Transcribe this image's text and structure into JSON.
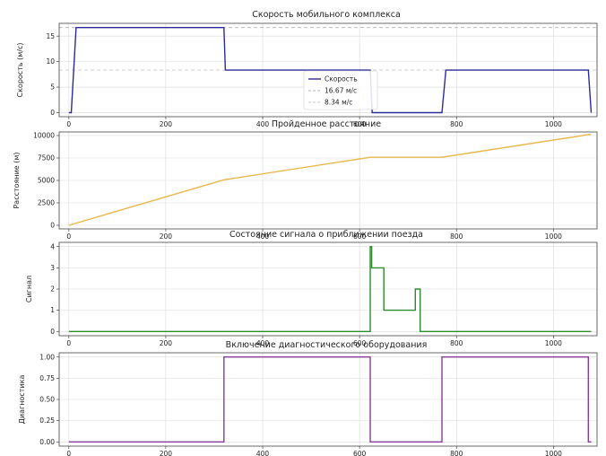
{
  "chart_data": [
    {
      "type": "line",
      "title": "Скорость мобильного комплекса",
      "xlabel": "",
      "ylabel": "Скорость (м/с)",
      "xlim": [
        -20,
        1090
      ],
      "ylim": [
        -0.8,
        17.5
      ],
      "xticks": [
        0,
        200,
        400,
        600,
        800,
        1000
      ],
      "yticks": [
        0,
        5,
        10,
        15
      ],
      "grid": true,
      "legend_position": "center",
      "series": [
        {
          "name": "Скорость",
          "color": "#2b2b9a",
          "x": [
            0,
            5,
            15,
            320,
            323,
            622,
            626,
            770,
            778,
            1072,
            1078
          ],
          "y": [
            0,
            0,
            16.67,
            16.67,
            8.34,
            8.34,
            0,
            0,
            8.34,
            8.34,
            0
          ]
        }
      ],
      "reference_lines": [
        {
          "name": "16.67 м/с",
          "y": 16.67,
          "color": "#b0b0b0",
          "style": "dashed"
        },
        {
          "name": "8.34 м/с",
          "y": 8.34,
          "color": "#c9c9c9",
          "style": "dashed"
        }
      ]
    },
    {
      "type": "line",
      "title": "Пройденное расстояние",
      "xlabel": "",
      "ylabel": "Расстояние (м)",
      "xlim": [
        -20,
        1090
      ],
      "ylim": [
        -400,
        10400
      ],
      "xticks": [
        0,
        200,
        400,
        600,
        800,
        1000
      ],
      "yticks": [
        0,
        2500,
        5000,
        7500,
        10000
      ],
      "grid": true,
      "series": [
        {
          "name": "",
          "color": "#e8b84d",
          "x": [
            0,
            320,
            622,
            770,
            1078
          ],
          "y": [
            0,
            5070,
            7580,
            7580,
            10150
          ]
        }
      ]
    },
    {
      "type": "line",
      "title": "Состояние сигнала о приближении поезда",
      "xlabel": "",
      "ylabel": "Сигнал",
      "xlim": [
        -20,
        1090
      ],
      "ylim": [
        -0.2,
        4.2
      ],
      "xticks": [
        0,
        200,
        400,
        600,
        800,
        1000
      ],
      "yticks": [
        0,
        1,
        2,
        3,
        4
      ],
      "grid": true,
      "series": [
        {
          "name": "",
          "color": "#2e8b2e",
          "x": [
            0,
            622,
            622,
            625,
            625,
            650,
            650,
            715,
            715,
            725,
            725,
            1078
          ],
          "y": [
            0,
            0,
            4,
            4,
            3,
            3,
            1,
            1,
            2,
            2,
            0,
            0
          ]
        }
      ]
    },
    {
      "type": "line",
      "title": "Включение диагностического оборудования",
      "xlabel": "",
      "ylabel": "Диагностика",
      "xlim": [
        -20,
        1090
      ],
      "ylim": [
        -0.05,
        1.05
      ],
      "xticks": [
        0,
        200,
        400,
        600,
        800,
        1000
      ],
      "yticks": [
        0.0,
        0.25,
        0.5,
        0.75,
        1.0
      ],
      "ytick_labels": [
        "0.00",
        "0.25",
        "0.50",
        "0.75",
        "1.00"
      ],
      "grid": true,
      "series": [
        {
          "name": "",
          "color": "#8a3a9a",
          "x": [
            0,
            320,
            320,
            622,
            622,
            770,
            770,
            1072,
            1072,
            1078
          ],
          "y": [
            0,
            0,
            1,
            1,
            0,
            0,
            1,
            1,
            0,
            0
          ]
        }
      ]
    }
  ]
}
